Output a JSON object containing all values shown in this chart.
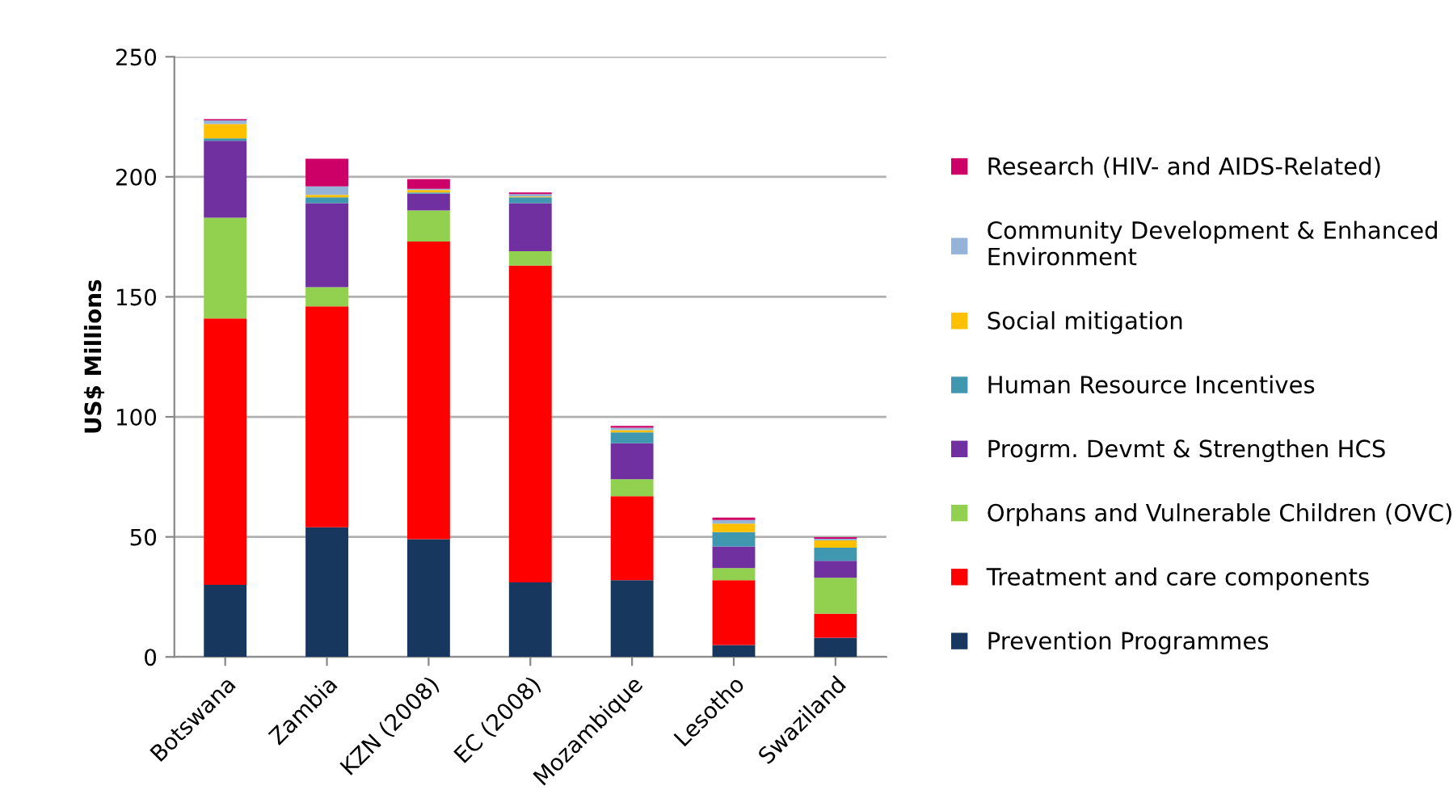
{
  "chart_data": {
    "type": "bar",
    "stacked": true,
    "ylabel": "US$ Millions",
    "categories": [
      "Botswana",
      "Zambia",
      "KZN (2008)",
      "EC (2008)",
      "Mozambique",
      "Lesotho",
      "Swaziland"
    ],
    "series": [
      {
        "name": "Prevention Programmes",
        "color": "#17375e",
        "values": [
          30,
          54,
          49,
          31,
          32,
          5,
          8
        ]
      },
      {
        "name": "Treatment and care components",
        "color": "#ff0000",
        "values": [
          111,
          92,
          124,
          132,
          35,
          27,
          10
        ]
      },
      {
        "name": "Orphans and Vulnerable Children (OVC)",
        "color": "#92d050",
        "values": [
          42,
          8,
          13,
          6,
          7,
          5,
          15
        ]
      },
      {
        "name": "Progrm. Devmt & Strengthen HCS",
        "color": "#7030a0",
        "values": [
          32,
          35,
          7,
          20,
          15,
          9,
          7
        ]
      },
      {
        "name": "Human Resource Incentives",
        "color": "#4098b0",
        "values": [
          1,
          2.5,
          0.5,
          2.5,
          4.5,
          6,
          5.5
        ]
      },
      {
        "name": "Social mitigation",
        "color": "#ffc000",
        "values": [
          6,
          1,
          1,
          0.3,
          1,
          3.5,
          3
        ]
      },
      {
        "name": "Community Development & Enhanced\nEnvironment",
        "color": "#95b3d7",
        "values": [
          1.5,
          3.5,
          0.5,
          1,
          1,
          1.5,
          0.7
        ]
      },
      {
        "name": "Research (HIV- and AIDS-Related)",
        "color": "#cc0066",
        "values": [
          0.5,
          11.5,
          4,
          0.7,
          0.7,
          1,
          0.7
        ]
      }
    ],
    "ylim": [
      0,
      250
    ],
    "yticks": [
      0,
      50,
      100,
      150,
      200,
      250
    ],
    "grid": "y",
    "legend": "right"
  }
}
